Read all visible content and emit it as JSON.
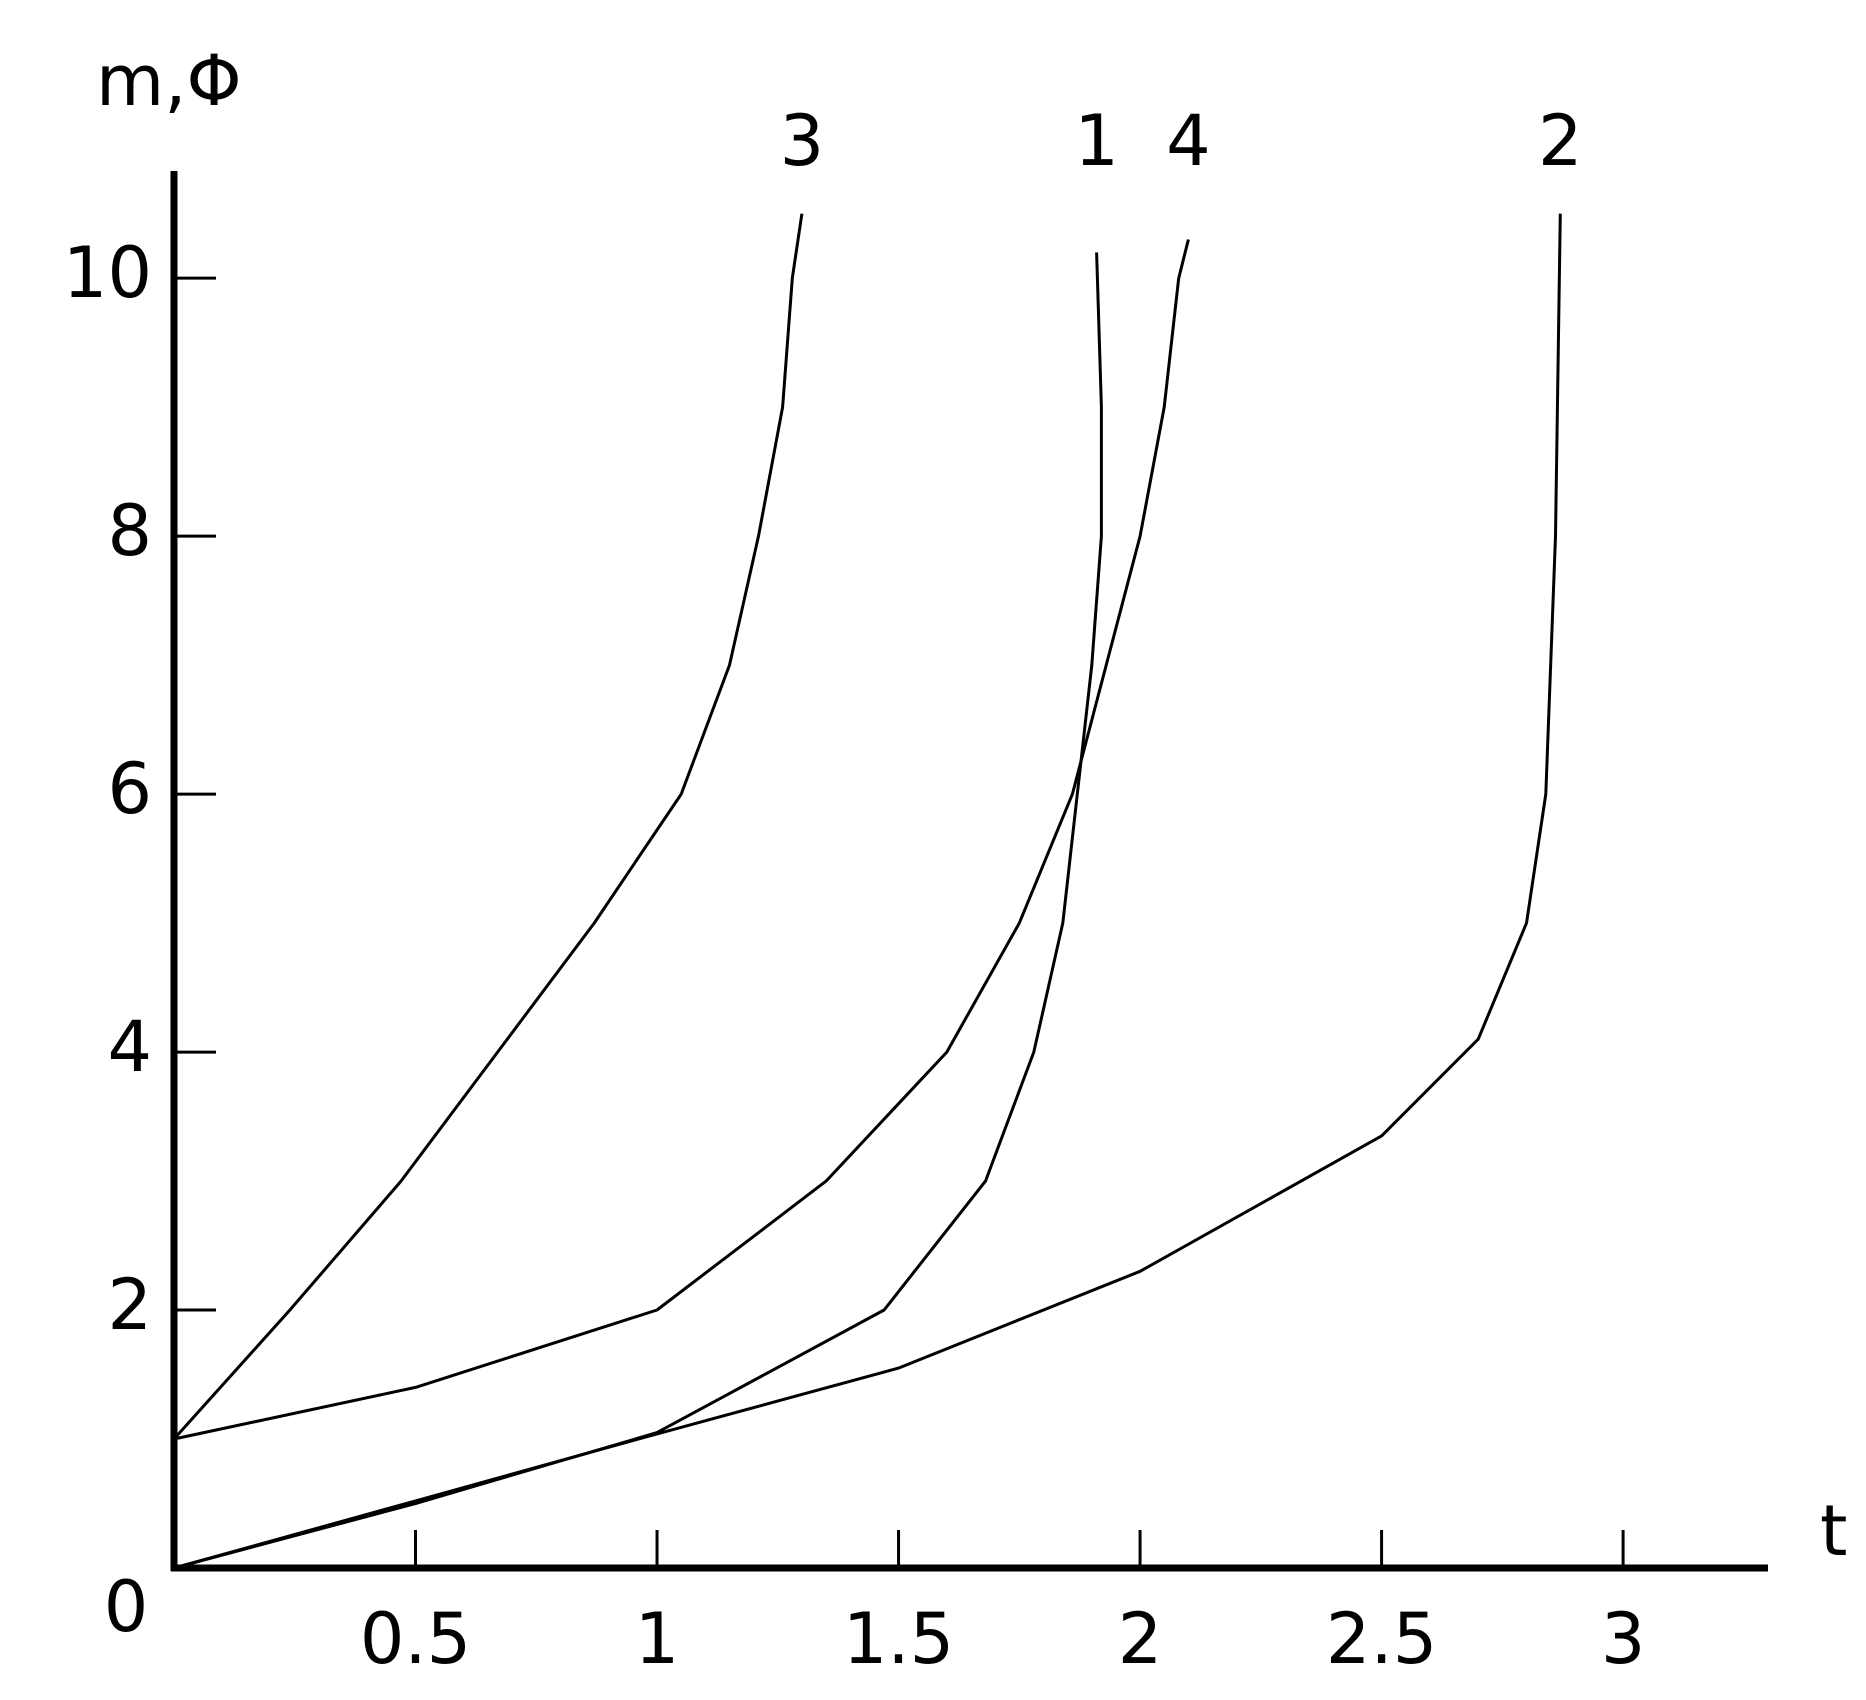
{
  "chart_data": {
    "type": "line",
    "x_label": "t",
    "y_label": "m,Φ",
    "xlim": [
      0,
      3.3
    ],
    "ylim": [
      0,
      10.8
    ],
    "xticks": [
      0.5,
      1,
      1.5,
      2,
      2.5,
      3
    ],
    "yticks": [
      0,
      2,
      4,
      6,
      8,
      10
    ],
    "series": [
      {
        "name": "3",
        "color": "#000000",
        "x": [
          0,
          0.24,
          0.47,
          0.67,
          0.87,
          1.05,
          1.15,
          1.21,
          1.26,
          1.28,
          1.3
        ],
        "values": [
          1,
          2,
          3,
          4,
          5,
          6,
          7,
          8,
          9,
          10,
          10.5
        ]
      },
      {
        "name": "1",
        "color": "#000000",
        "x": [
          0,
          0.5,
          1.0,
          1.47,
          1.68,
          1.78,
          1.84,
          1.87,
          1.9,
          1.92,
          1.92,
          1.91
        ],
        "values": [
          0,
          0.5,
          1.05,
          2,
          3,
          4,
          5,
          6,
          7,
          8,
          9,
          10.2
        ]
      },
      {
        "name": "4",
        "color": "#000000",
        "x": [
          0,
          0.5,
          1.0,
          1.35,
          1.6,
          1.75,
          1.86,
          1.93,
          2.0,
          2.05,
          2.08,
          2.1
        ],
        "values": [
          1,
          1.4,
          2,
          3,
          4,
          5,
          6,
          7,
          8,
          9,
          10,
          10.3
        ]
      },
      {
        "name": "2",
        "color": "#000000",
        "x": [
          0,
          0.5,
          1.0,
          1.5,
          2.0,
          2.5,
          2.7,
          2.8,
          2.84,
          2.86,
          2.87
        ],
        "values": [
          0,
          0.52,
          1.04,
          1.55,
          2.3,
          3.35,
          4.1,
          5.0,
          6,
          8,
          10.5
        ]
      }
    ]
  }
}
